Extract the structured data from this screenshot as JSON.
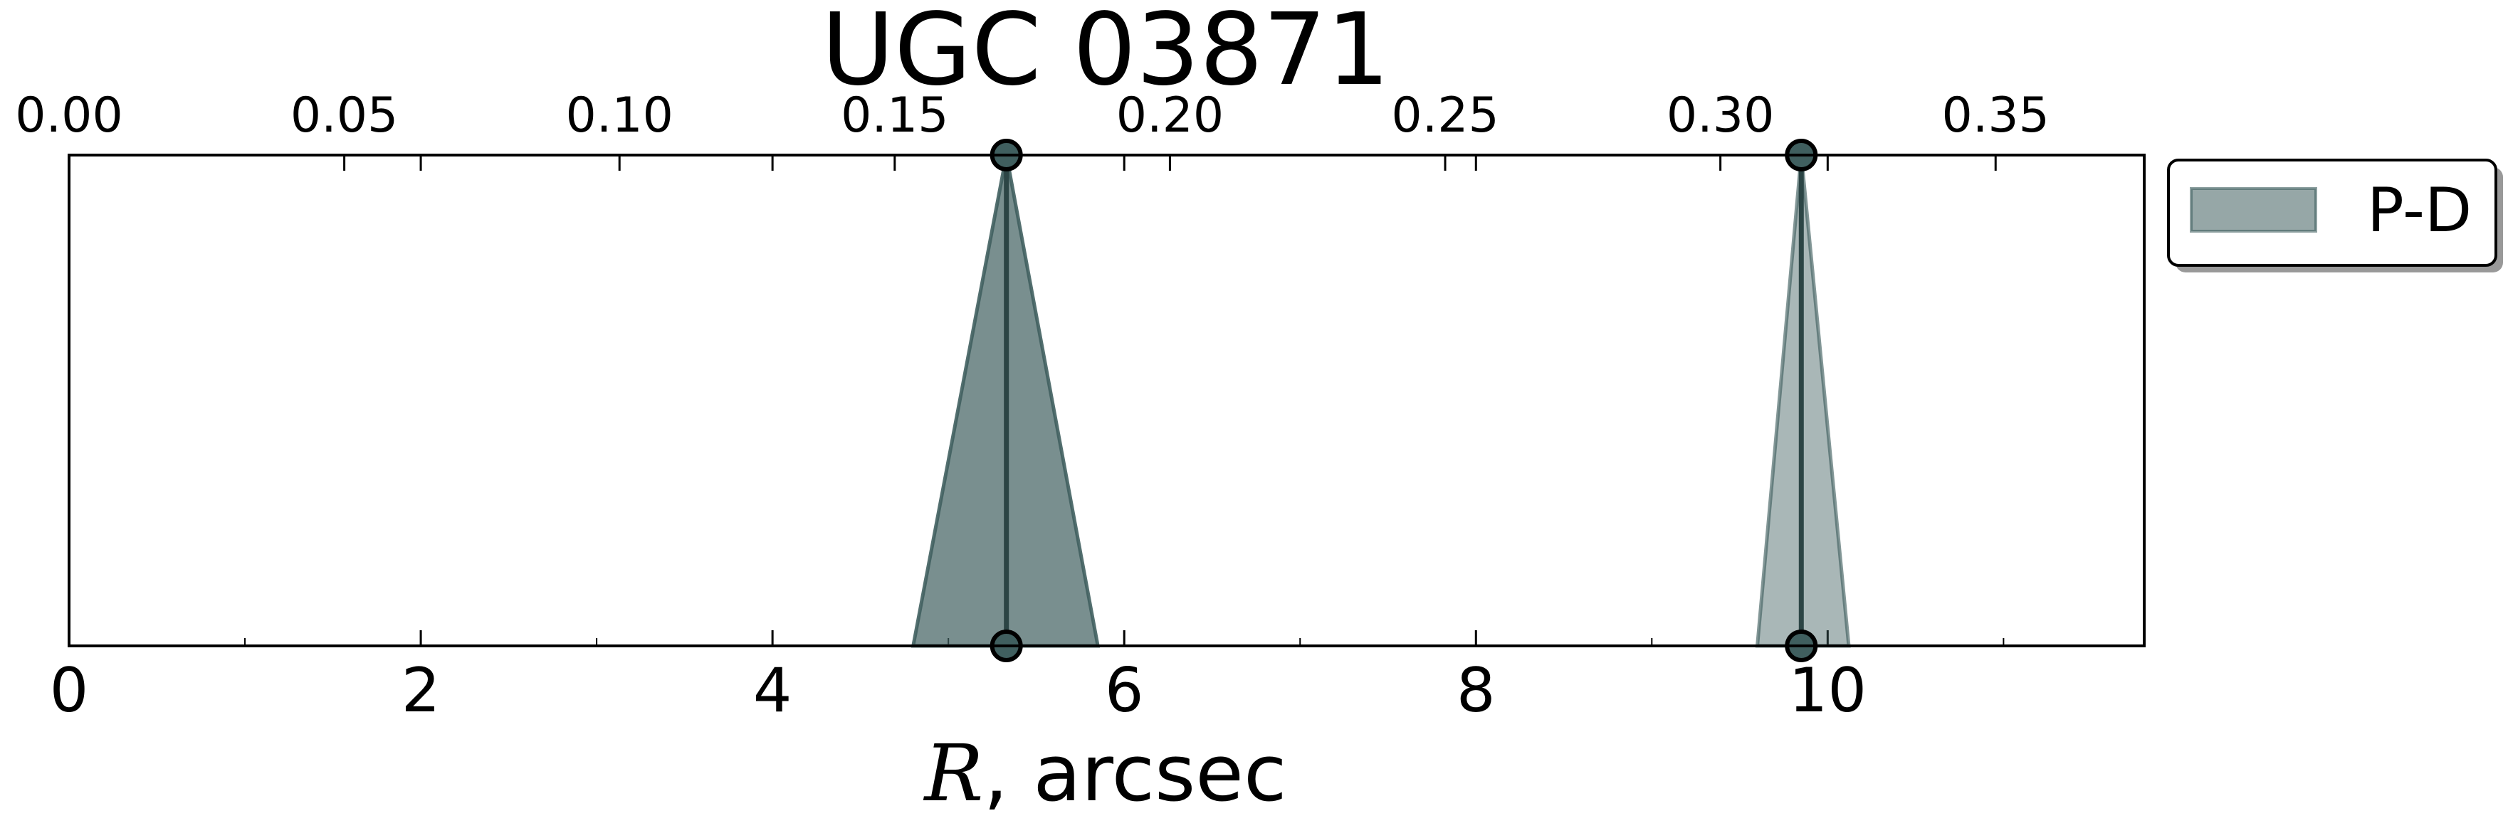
{
  "chart_data": {
    "type": "area",
    "title": "UGC 03871",
    "xlabel_symbol": "R",
    "xlabel_rest": ", arcsec",
    "xlim": [
      0,
      11.8
    ],
    "xticks": [
      0,
      2,
      4,
      6,
      8,
      10
    ],
    "top_xlim": [
      0,
      0.377
    ],
    "top_xticks": [
      "0.00",
      "0.05",
      "0.10",
      "0.15",
      "0.20",
      "0.25",
      "0.30",
      "0.35"
    ],
    "grid": false,
    "legend": {
      "placement": "outside-top-right",
      "entries": [
        "P-D"
      ]
    },
    "series": [
      {
        "name": "P-D",
        "color": "#405f5f",
        "peaks": [
          {
            "center": 5.33,
            "left": 4.8,
            "right": 5.85,
            "opacity": 0.7
          },
          {
            "center": 9.85,
            "left": 9.6,
            "right": 10.12,
            "opacity": 0.45
          }
        ]
      }
    ]
  }
}
